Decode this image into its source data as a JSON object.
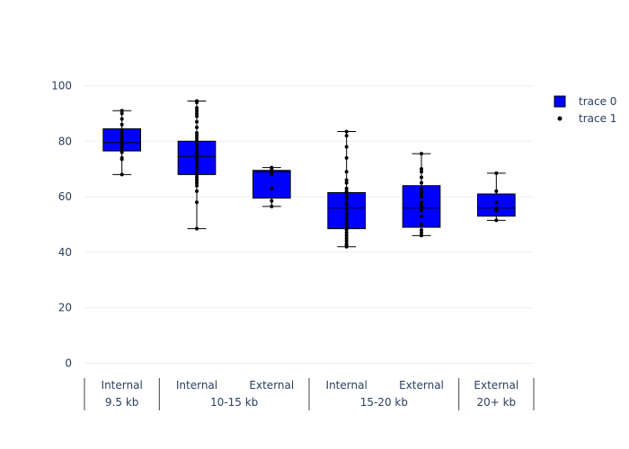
{
  "chart_data": {
    "type": "box",
    "title": "",
    "xlabel": "",
    "ylabel": "",
    "ylim": [
      -5,
      105
    ],
    "y_ticks": [
      0,
      20,
      40,
      60,
      80,
      100
    ],
    "x_groups": [
      {
        "label": "9.5 kb",
        "categories": [
          "Internal"
        ]
      },
      {
        "label": "10-15 kb",
        "categories": [
          "Internal",
          "External"
        ]
      },
      {
        "label": "15-20 kb",
        "categories": [
          "Internal",
          "External"
        ]
      },
      {
        "label": "20+ kb",
        "categories": [
          "External"
        ]
      }
    ],
    "boxes": [
      {
        "group": "9.5 kb",
        "category": "Internal",
        "min": 68,
        "q1": 76.5,
        "median": 79.5,
        "q3": 84.5,
        "max": 91,
        "points": [
          68,
          73.5,
          74,
          76,
          77,
          78,
          79,
          80,
          81,
          82,
          83,
          84,
          86,
          88,
          90,
          91
        ]
      },
      {
        "group": "10-15 kb",
        "category": "Internal",
        "min": 48.5,
        "q1": 68,
        "median": 74.5,
        "q3": 80,
        "max": 94.5,
        "points": [
          48.5,
          58,
          62,
          64,
          65,
          66,
          67,
          68,
          69,
          70,
          71,
          72,
          73,
          74,
          75,
          76,
          77,
          78,
          79,
          80,
          81,
          82,
          83,
          85,
          87,
          89,
          90,
          91,
          92,
          94,
          94.5
        ]
      },
      {
        "group": "10-15 kb",
        "category": "External",
        "min": 56.5,
        "q1": 59.5,
        "median": 69,
        "q3": 69.5,
        "max": 70.5,
        "points": [
          56.5,
          58.5,
          63,
          68,
          69,
          70,
          70.5
        ]
      },
      {
        "group": "15-20 kb",
        "category": "Internal",
        "min": 42,
        "q1": 48.5,
        "median": 56,
        "q3": 61.5,
        "max": 83.5,
        "points": [
          42,
          42.5,
          43,
          44,
          45,
          46,
          47,
          48,
          49,
          50,
          51,
          52,
          53,
          54,
          55,
          56,
          57,
          58,
          59,
          60,
          61,
          62,
          63,
          65,
          66,
          69,
          74,
          78,
          82,
          83.5
        ]
      },
      {
        "group": "15-20 kb",
        "category": "External",
        "min": 46,
        "q1": 49,
        "median": 56,
        "q3": 64,
        "max": 75.5,
        "points": [
          46,
          47,
          48,
          50,
          53,
          55,
          56,
          57,
          58,
          60,
          61,
          62,
          63,
          65,
          67,
          69,
          70,
          75.5
        ]
      },
      {
        "group": "20+ kb",
        "category": "External",
        "min": 51.5,
        "q1": 53,
        "median": 56,
        "q3": 61,
        "max": 68.5,
        "points": [
          51.5,
          55,
          55.5,
          56,
          58,
          62,
          68.5
        ]
      }
    ],
    "legend": {
      "placement": "top-right",
      "entries": [
        {
          "name": "trace 0",
          "symbol": "box",
          "color": "#0000ff"
        },
        {
          "name": "trace 1",
          "symbol": "marker",
          "color": "#000000"
        }
      ]
    },
    "colors": {
      "box_fill": "#0000ff",
      "box_line": "#000000",
      "marker": "#000000",
      "grid": "#eeeeee",
      "tick_text": "#2a3f5f"
    },
    "grid": true
  }
}
